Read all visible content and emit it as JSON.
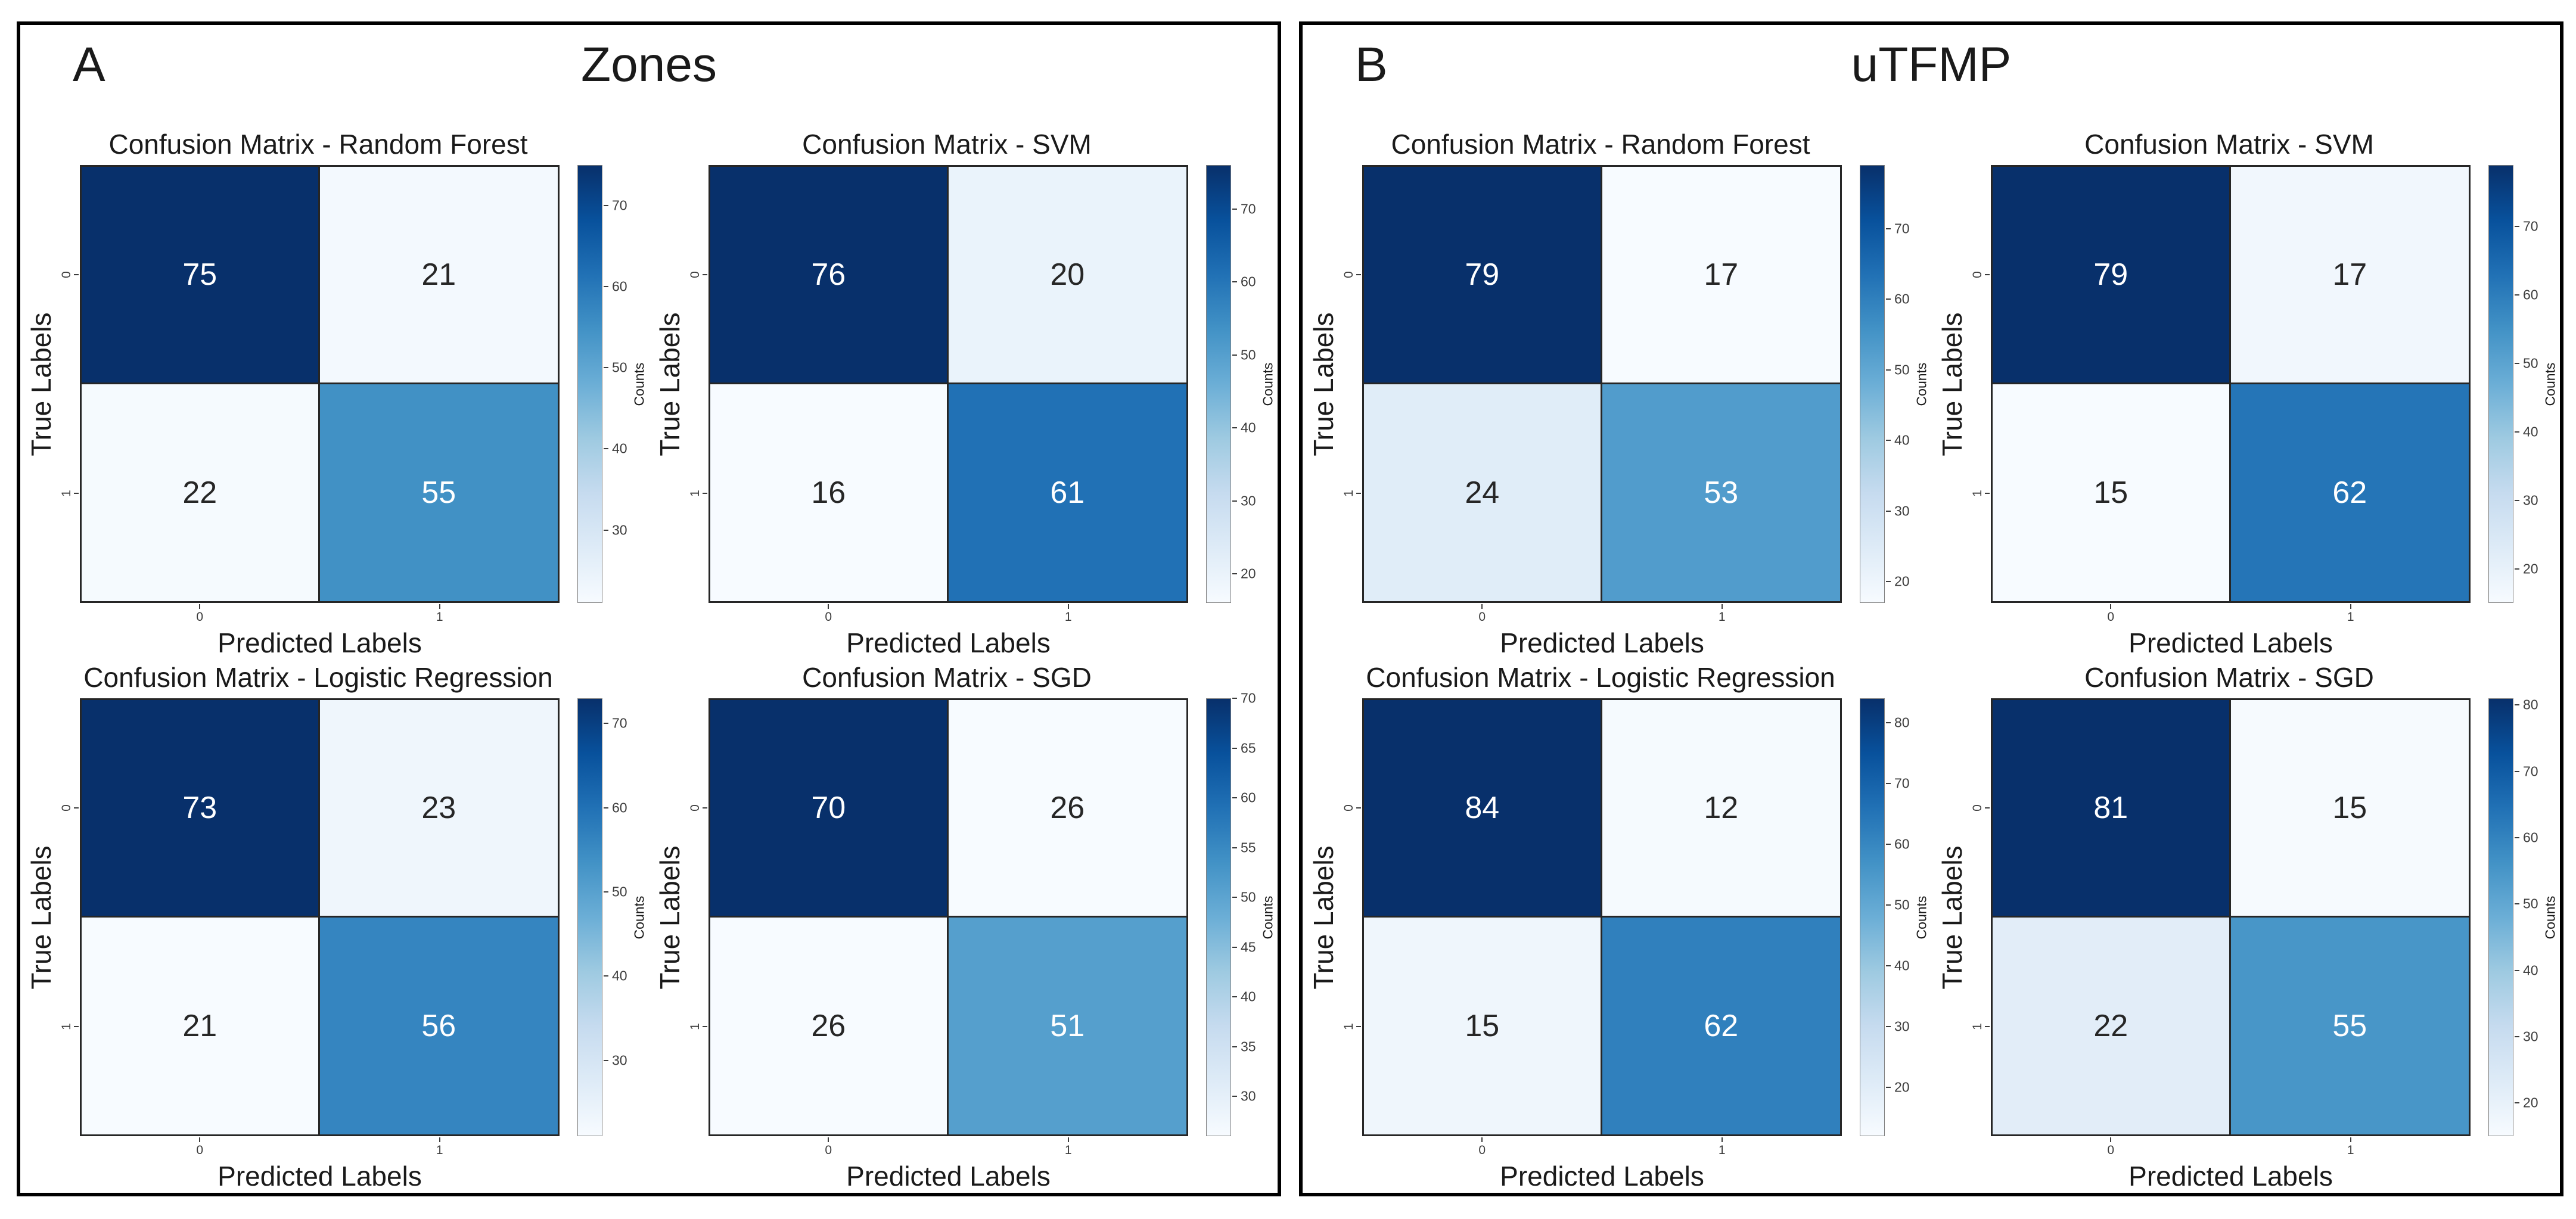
{
  "panels": [
    {
      "label": "A",
      "title": "Zones"
    },
    {
      "label": "B",
      "title": "uTFMP"
    }
  ],
  "shared": {
    "xlabel": "Predicted Labels",
    "ylabel": "True Labels",
    "colorbar_label": "Counts",
    "x_categories": [
      "0",
      "1"
    ],
    "y_categories": [
      "0",
      "1"
    ]
  },
  "colors": {
    "panel_border": "#000000",
    "text": "#1a1a1a",
    "tick_text": "#3c3c3c",
    "cell_grid": "#262626",
    "colormap_name": "Blues",
    "colormap_stops": [
      "#f7fbff",
      "#deebf7",
      "#c6dbef",
      "#9ecae1",
      "#6baed6",
      "#4292c6",
      "#2171b5",
      "#08519c",
      "#08306b"
    ]
  },
  "chart_data": [
    {
      "type": "heatmap",
      "panel": "A",
      "title": "Confusion Matrix - Random Forest",
      "xlabel": "Predicted Labels",
      "ylabel": "True Labels",
      "colorbar_label": "Counts",
      "x_categories": [
        "0",
        "1"
      ],
      "y_categories": [
        "0",
        "1"
      ],
      "matrix": [
        [
          75,
          21
        ],
        [
          22,
          55
        ]
      ],
      "vmin": 21,
      "vmax": 75,
      "colorbar_ticks": [
        30,
        40,
        50,
        60,
        70
      ],
      "cell_colors": [
        [
          "#08306b",
          "#f3f9fe"
        ],
        [
          "#f5fafe",
          "#4191c5"
        ]
      ],
      "cell_text_colors": [
        [
          "#ffffff",
          "#262626"
        ],
        [
          "#262626",
          "#ffffff"
        ]
      ]
    },
    {
      "type": "heatmap",
      "panel": "A",
      "title": "Confusion Matrix - SVM",
      "xlabel": "Predicted Labels",
      "ylabel": "True Labels",
      "colorbar_label": "Counts",
      "x_categories": [
        "0",
        "1"
      ],
      "y_categories": [
        "0",
        "1"
      ],
      "matrix": [
        [
          76,
          20
        ],
        [
          16,
          61
        ]
      ],
      "vmin": 16,
      "vmax": 76,
      "colorbar_ticks": [
        20,
        30,
        40,
        50,
        60,
        70
      ],
      "cell_colors": [
        [
          "#08306b",
          "#eaf3fb"
        ],
        [
          "#f7fbff",
          "#2171b5"
        ]
      ],
      "cell_text_colors": [
        [
          "#ffffff",
          "#262626"
        ],
        [
          "#262626",
          "#ffffff"
        ]
      ]
    },
    {
      "type": "heatmap",
      "panel": "A",
      "title": "Confusion Matrix - Logistic Regression",
      "xlabel": "Predicted Labels",
      "ylabel": "True Labels",
      "colorbar_label": "Counts",
      "x_categories": [
        "0",
        "1"
      ],
      "y_categories": [
        "0",
        "1"
      ],
      "matrix": [
        [
          73,
          23
        ],
        [
          21,
          56
        ]
      ],
      "vmin": 21,
      "vmax": 73,
      "colorbar_ticks": [
        30,
        40,
        50,
        60,
        70
      ],
      "cell_colors": [
        [
          "#08306b",
          "#eff6fc"
        ],
        [
          "#f7fbff",
          "#3585c0"
        ]
      ],
      "cell_text_colors": [
        [
          "#ffffff",
          "#262626"
        ],
        [
          "#262626",
          "#ffffff"
        ]
      ]
    },
    {
      "type": "heatmap",
      "panel": "A",
      "title": "Confusion Matrix - SGD",
      "xlabel": "Predicted Labels",
      "ylabel": "True Labels",
      "colorbar_label": "Counts",
      "x_categories": [
        "0",
        "1"
      ],
      "y_categories": [
        "0",
        "1"
      ],
      "matrix": [
        [
          70,
          26
        ],
        [
          26,
          51
        ]
      ],
      "vmin": 26,
      "vmax": 70,
      "colorbar_ticks": [
        30,
        35,
        40,
        45,
        50,
        55,
        60,
        65,
        70
      ],
      "cell_colors": [
        [
          "#08306b",
          "#f7fbff"
        ],
        [
          "#f7fbff",
          "#559fcd"
        ]
      ],
      "cell_text_colors": [
        [
          "#ffffff",
          "#262626"
        ],
        [
          "#262626",
          "#ffffff"
        ]
      ]
    },
    {
      "type": "heatmap",
      "panel": "B",
      "title": "Confusion Matrix - Random Forest",
      "xlabel": "Predicted Labels",
      "ylabel": "True Labels",
      "colorbar_label": "Counts",
      "x_categories": [
        "0",
        "1"
      ],
      "y_categories": [
        "0",
        "1"
      ],
      "matrix": [
        [
          79,
          17
        ],
        [
          24,
          53
        ]
      ],
      "vmin": 17,
      "vmax": 79,
      "colorbar_ticks": [
        20,
        30,
        40,
        50,
        60,
        70
      ],
      "cell_colors": [
        [
          "#08306b",
          "#f7fbff"
        ],
        [
          "#e0edf8",
          "#519ccc"
        ]
      ],
      "cell_text_colors": [
        [
          "#ffffff",
          "#262626"
        ],
        [
          "#262626",
          "#ffffff"
        ]
      ]
    },
    {
      "type": "heatmap",
      "panel": "B",
      "title": "Confusion Matrix - SVM",
      "xlabel": "Predicted Labels",
      "ylabel": "True Labels",
      "colorbar_label": "Counts",
      "x_categories": [
        "0",
        "1"
      ],
      "y_categories": [
        "0",
        "1"
      ],
      "matrix": [
        [
          79,
          17
        ],
        [
          15,
          62
        ]
      ],
      "vmin": 15,
      "vmax": 79,
      "colorbar_ticks": [
        20,
        30,
        40,
        50,
        60,
        70
      ],
      "cell_colors": [
        [
          "#08306b",
          "#f1f7fd"
        ],
        [
          "#f7fbff",
          "#2575b7"
        ]
      ],
      "cell_text_colors": [
        [
          "#ffffff",
          "#262626"
        ],
        [
          "#262626",
          "#ffffff"
        ]
      ]
    },
    {
      "type": "heatmap",
      "panel": "B",
      "title": "Confusion Matrix - Logistic Regression",
      "xlabel": "Predicted Labels",
      "ylabel": "True Labels",
      "colorbar_label": "Counts",
      "x_categories": [
        "0",
        "1"
      ],
      "y_categories": [
        "0",
        "1"
      ],
      "matrix": [
        [
          84,
          12
        ],
        [
          15,
          62
        ]
      ],
      "vmin": 12,
      "vmax": 84,
      "colorbar_ticks": [
        20,
        30,
        40,
        50,
        60,
        70,
        80
      ],
      "cell_colors": [
        [
          "#08306b",
          "#f5fafe"
        ],
        [
          "#eff6fc",
          "#3080bd"
        ]
      ],
      "cell_text_colors": [
        [
          "#ffffff",
          "#262626"
        ],
        [
          "#262626",
          "#ffffff"
        ]
      ]
    },
    {
      "type": "heatmap",
      "panel": "B",
      "title": "Confusion Matrix - SGD",
      "xlabel": "Predicted Labels",
      "ylabel": "True Labels",
      "colorbar_label": "Counts",
      "x_categories": [
        "0",
        "1"
      ],
      "y_categories": [
        "0",
        "1"
      ],
      "matrix": [
        [
          81,
          15
        ],
        [
          22,
          55
        ]
      ],
      "vmin": 15,
      "vmax": 81,
      "colorbar_ticks": [
        20,
        30,
        40,
        50,
        60,
        70,
        80
      ],
      "cell_colors": [
        [
          "#08306b",
          "#f6fafe"
        ],
        [
          "#e2edf8",
          "#4896c8"
        ]
      ],
      "cell_text_colors": [
        [
          "#ffffff",
          "#262626"
        ],
        [
          "#262626",
          "#ffffff"
        ]
      ]
    }
  ]
}
